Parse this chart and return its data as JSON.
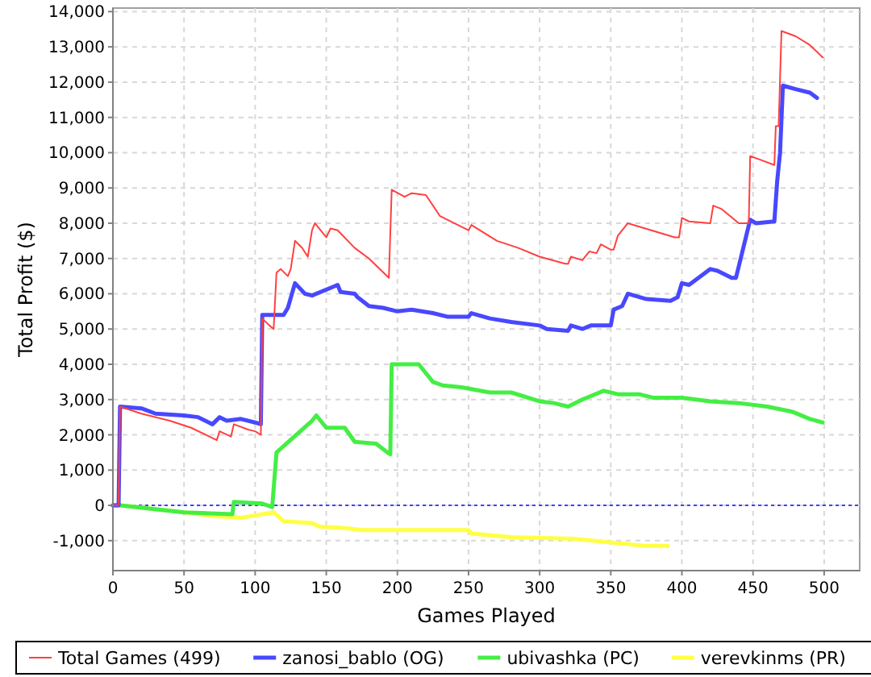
{
  "chart_data": {
    "type": "line",
    "xlabel": "Games Played",
    "ylabel": "Total Profit ($)",
    "xlim": [
      0,
      525
    ],
    "ylim": [
      -1850,
      14100
    ],
    "xticks": [
      0,
      50,
      100,
      150,
      200,
      250,
      300,
      350,
      400,
      450,
      500
    ],
    "yticks": [
      {
        "value": -1000,
        "label": "-1,000"
      },
      0,
      {
        "value": 1000,
        "label": "1,000"
      },
      {
        "value": 2000,
        "label": "2,000"
      },
      {
        "value": 3000,
        "label": "3,000"
      },
      {
        "value": 4000,
        "label": "4,000"
      },
      {
        "value": 5000,
        "label": "5,000"
      },
      {
        "value": 6000,
        "label": "6,000"
      },
      {
        "value": 7000,
        "label": "7,000"
      },
      {
        "value": 8000,
        "label": "8,000"
      },
      {
        "value": 9000,
        "label": "9,000"
      },
      {
        "value": 10000,
        "label": "10,000"
      },
      {
        "value": 11000,
        "label": "11,000"
      },
      {
        "value": 12000,
        "label": "12,000"
      },
      {
        "value": 13000,
        "label": "13,000"
      },
      {
        "value": 14000,
        "label": "14,000"
      }
    ],
    "grid": true,
    "legend": "bottom",
    "marker": "none",
    "line_style": "solid",
    "ref_lines": [
      {
        "axis": "y",
        "value": 0,
        "color": "#4040ff",
        "line_style": "dotted"
      }
    ],
    "series": [
      {
        "name": "Total Games (499)",
        "color": "#ff4040",
        "x": [
          0,
          4,
          5,
          20,
          40,
          55,
          73,
          75,
          83,
          85,
          95,
          100,
          104,
          105,
          110,
          113,
          115,
          118,
          123,
          125,
          128,
          133,
          137,
          140,
          142,
          150,
          153,
          158,
          170,
          180,
          194,
          196,
          205,
          210,
          220,
          230,
          245,
          250,
          252,
          270,
          285,
          300,
          318,
          320,
          322,
          330,
          335,
          340,
          343,
          350,
          352,
          355,
          362,
          370,
          395,
          398,
          400,
          405,
          420,
          422,
          428,
          440,
          447,
          448,
          455,
          465,
          466,
          468,
          470,
          480,
          490,
          499
        ],
        "values": [
          0,
          0,
          2800,
          2600,
          2400,
          2200,
          1850,
          2100,
          1950,
          2300,
          2150,
          2100,
          2000,
          5300,
          5100,
          5000,
          6600,
          6700,
          6500,
          6700,
          7500,
          7300,
          7050,
          7800,
          8000,
          7600,
          7850,
          7800,
          7300,
          7000,
          6450,
          8950,
          8750,
          8850,
          8800,
          8200,
          7900,
          7800,
          7950,
          7500,
          7300,
          7050,
          6850,
          6850,
          7050,
          6950,
          7200,
          7150,
          7400,
          7250,
          7250,
          7650,
          8000,
          7900,
          7600,
          7600,
          8150,
          8050,
          8000,
          8500,
          8400,
          8000,
          8000,
          9900,
          9800,
          9650,
          10750,
          10750,
          13450,
          13300,
          13050,
          12700
        ]
      },
      {
        "name": "zanosi_bablo (OG)",
        "color": "#4848ff",
        "x": [
          0,
          4,
          5,
          20,
          30,
          50,
          60,
          70,
          75,
          80,
          90,
          100,
          104,
          105,
          120,
          123,
          128,
          135,
          140,
          155,
          158,
          160,
          170,
          172,
          180,
          190,
          200,
          210,
          225,
          235,
          250,
          252,
          265,
          280,
          300,
          305,
          320,
          322,
          330,
          336,
          350,
          352,
          358,
          362,
          375,
          392,
          397,
          400,
          405,
          420,
          425,
          435,
          438,
          448,
          452,
          465,
          467,
          469,
          471,
          480,
          490,
          495
        ],
        "values": [
          0,
          0,
          2800,
          2750,
          2600,
          2550,
          2500,
          2300,
          2500,
          2400,
          2450,
          2350,
          2300,
          5400,
          5400,
          5600,
          6300,
          6000,
          5950,
          6200,
          6250,
          6050,
          6000,
          5900,
          5650,
          5600,
          5500,
          5550,
          5450,
          5350,
          5350,
          5450,
          5300,
          5200,
          5100,
          5000,
          4950,
          5100,
          5000,
          5100,
          5100,
          5550,
          5650,
          6000,
          5850,
          5800,
          5900,
          6300,
          6250,
          6700,
          6650,
          6450,
          6450,
          8100,
          8000,
          8050,
          9200,
          10000,
          11900,
          11800,
          11700,
          11550
        ]
      },
      {
        "name": "ubivashka (PC)",
        "color": "#44ee44",
        "x": [
          0,
          5,
          50,
          84,
          85,
          105,
          112,
          115,
          140,
          143,
          150,
          163,
          170,
          185,
          193,
          195,
          196,
          215,
          225,
          232,
          245,
          265,
          280,
          300,
          310,
          320,
          330,
          345,
          355,
          370,
          380,
          400,
          420,
          440,
          460,
          478,
          490,
          499
        ],
        "values": [
          0,
          0,
          -200,
          -250,
          100,
          50,
          -50,
          1500,
          2400,
          2550,
          2200,
          2200,
          1800,
          1750,
          1500,
          1450,
          4000,
          4000,
          3500,
          3400,
          3350,
          3200,
          3200,
          2950,
          2900,
          2800,
          3000,
          3250,
          3150,
          3150,
          3050,
          3050,
          2950,
          2900,
          2800,
          2650,
          2450,
          2350
        ]
      },
      {
        "name": "verevkinms (PR)",
        "color": "#ffff44",
        "x": [
          0,
          5,
          40,
          70,
          90,
          113,
          120,
          140,
          145,
          165,
          175,
          250,
          252,
          280,
          325,
          350,
          375,
          390
        ],
        "values": [
          0,
          0,
          -150,
          -300,
          -350,
          -200,
          -450,
          -500,
          -600,
          -650,
          -700,
          -700,
          -800,
          -900,
          -950,
          -1050,
          -1150,
          -1150
        ]
      }
    ]
  }
}
